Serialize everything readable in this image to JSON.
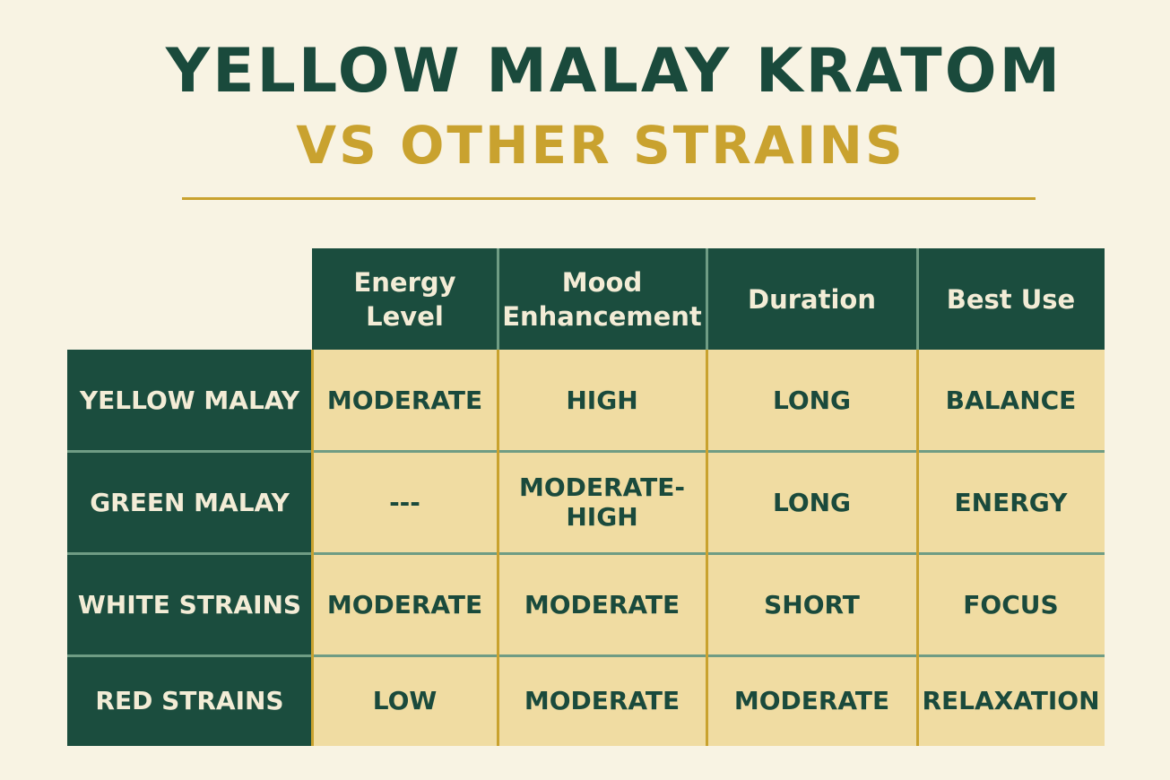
{
  "header": {
    "title": "YELLOW MALAY KRATOM",
    "subtitle": "VS OTHER STRAINS"
  },
  "table": {
    "columns": [
      "Energy\nLevel",
      "Mood\nEnhancement",
      "Duration",
      "Best Use"
    ],
    "rows": [
      {
        "name": "YELLOW MALAY",
        "cells": [
          "MODERATE",
          "HIGH",
          "LONG",
          "BALANCE"
        ]
      },
      {
        "name": "GREEN MALAY",
        "cells": [
          "---",
          "MODERATE-HIGH",
          "LONG",
          "ENERGY"
        ]
      },
      {
        "name": "WHITE STRAINS",
        "cells": [
          "MODERATE",
          "MODERATE",
          "SHORT",
          "FOCUS"
        ]
      },
      {
        "name": "RED STRAINS",
        "cells": [
          "LOW",
          "MODERATE",
          "MODERATE",
          "RELAXATION"
        ]
      }
    ]
  }
}
